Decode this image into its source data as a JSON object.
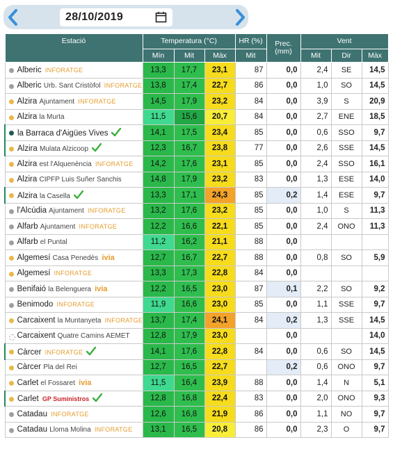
{
  "date_picker": {
    "date": "28/10/2019",
    "prev_icon": "chevron-left-icon",
    "next_icon": "chevron-right-icon",
    "calendar_icon": "calendar-icon"
  },
  "table": {
    "headers": {
      "station": "Estació",
      "temperature": "Temperatura (°C)",
      "humidity": "HR (%)",
      "precipitation_line1": "Prec.",
      "precipitation_line2": "(mm)",
      "wind": "Vent",
      "temp_min": "Mín",
      "temp_mit": "Mit",
      "temp_max": "Màx",
      "hr_mit": "Mit",
      "wind_mit": "Mit",
      "wind_dir": "Dir",
      "wind_max": "Màx"
    },
    "rows": [
      {
        "city": "Alberic",
        "loc": "",
        "src": "INFORATGE",
        "check": false,
        "dot": "#9e9e9e",
        "min": "13,3",
        "mit": "17,7",
        "max": "23,1",
        "minc": "#2ab84a",
        "mitc": "#2fbe4e",
        "maxc": "#f6dc1c",
        "hr": "87",
        "prec": "0,0",
        "pbg": "#ffffff",
        "wmit": "2,4",
        "wdir": "SE",
        "wmax": "14,5"
      },
      {
        "city": "Alberic",
        "loc": "Urb. Sant Cristòfol",
        "src": "INFORATGE",
        "check": false,
        "dot": "#9e9e9e",
        "min": "13,8",
        "mit": "17,4",
        "max": "22,7",
        "minc": "#2ab84a",
        "mitc": "#2fbe4e",
        "maxc": "#f6dc1c",
        "hr": "86",
        "prec": "0,0",
        "pbg": "#ffffff",
        "wmit": "1,0",
        "wdir": "SO",
        "wmax": "14,5"
      },
      {
        "city": "Alzira",
        "loc": "Ajuntament",
        "src": "INFORATGE",
        "check": false,
        "dot": "#e8b84a",
        "min": "14,5",
        "mit": "17,9",
        "max": "23,2",
        "minc": "#2ab84a",
        "mitc": "#2fbe4e",
        "maxc": "#f6dc1c",
        "hr": "84",
        "prec": "0,0",
        "pbg": "#ffffff",
        "wmit": "3,9",
        "wdir": "S",
        "wmax": "20,9"
      },
      {
        "city": "Alzira",
        "loc": "la Murta",
        "src": "",
        "check": false,
        "dot": "#e8b84a",
        "min": "11,5",
        "mit": "15,6",
        "max": "20,7",
        "minc": "#3fd98f",
        "mitc": "#22a845",
        "maxc": "#f8ee38",
        "hr": "84",
        "prec": "0,0",
        "pbg": "#ffffff",
        "wmit": "2,7",
        "wdir": "ENE",
        "wmax": "18,5"
      },
      {
        "city": "la Barraca d'Aigües Vives",
        "loc": "",
        "src": "",
        "check": true,
        "dot": "#1e5a52",
        "hl": true,
        "min": "14,1",
        "mit": "17,5",
        "max": "23,4",
        "minc": "#2ab84a",
        "mitc": "#2fbe4e",
        "maxc": "#f6dc1c",
        "hr": "85",
        "prec": "0,0",
        "pbg": "#ffffff",
        "wmit": "0,6",
        "wdir": "SSO",
        "wmax": "9,7"
      },
      {
        "city": "Alzira",
        "loc": "Mulata Alzicoop",
        "src": "",
        "check": true,
        "dot": "#e8b84a",
        "hl": true,
        "min": "12,3",
        "mit": "16,7",
        "max": "23,8",
        "minc": "#2ab84a",
        "mitc": "#2fbe4e",
        "maxc": "#f6dc1c",
        "hr": "77",
        "prec": "0,0",
        "pbg": "#ffffff",
        "wmit": "2,6",
        "wdir": "SSE",
        "wmax": "14,5"
      },
      {
        "city": "Alzira",
        "loc": "est l'Alquenència",
        "src": "INFORATGE",
        "check": false,
        "dot": "#e8b84a",
        "min": "14,2",
        "mit": "17,6",
        "max": "23,1",
        "minc": "#2ab84a",
        "mitc": "#2fbe4e",
        "maxc": "#f6dc1c",
        "hr": "85",
        "prec": "0,0",
        "pbg": "#ffffff",
        "wmit": "2,4",
        "wdir": "SSO",
        "wmax": "16,1"
      },
      {
        "city": "Alzira",
        "loc": "CIPFP Luis Suñer Sanchis",
        "src": "",
        "check": false,
        "dot": "#e8b84a",
        "min": "14,8",
        "mit": "17,9",
        "max": "23,2",
        "minc": "#2ab84a",
        "mitc": "#2fbe4e",
        "maxc": "#f6dc1c",
        "hr": "83",
        "prec": "0,0",
        "pbg": "#ffffff",
        "wmit": "1,3",
        "wdir": "ESE",
        "wmax": "14,0"
      },
      {
        "city": "Alzira",
        "loc": "la Casella",
        "src": "",
        "check": true,
        "dot": "#e8b84a",
        "hl": true,
        "min": "13,3",
        "mit": "17,1",
        "max": "24,3",
        "minc": "#2ab84a",
        "mitc": "#2fbe4e",
        "maxc": "#f3a22a",
        "hr": "85",
        "prec": "0,2",
        "pbg": "#e3ecf7",
        "wmit": "1,4",
        "wdir": "ESE",
        "wmax": "9,7"
      },
      {
        "city": "l'Alcúdia",
        "loc": "Ajuntament",
        "src": "INFORATGE",
        "check": false,
        "dot": "#9e9e9e",
        "min": "13,2",
        "mit": "17,6",
        "max": "23,2",
        "minc": "#2ab84a",
        "mitc": "#2fbe4e",
        "maxc": "#f6dc1c",
        "hr": "85",
        "prec": "0,0",
        "pbg": "#ffffff",
        "wmit": "1,0",
        "wdir": "S",
        "wmax": "11,3"
      },
      {
        "city": "Alfarb",
        "loc": "Ajuntament",
        "src": "INFORATGE",
        "check": false,
        "dot": "#9e9e9e",
        "min": "12,2",
        "mit": "16,6",
        "max": "22,1",
        "minc": "#2ab84a",
        "mitc": "#2fbe4e",
        "maxc": "#f6dc1c",
        "hr": "85",
        "prec": "0,0",
        "pbg": "#ffffff",
        "wmit": "2,4",
        "wdir": "ONO",
        "wmax": "11,3"
      },
      {
        "city": "Alfarb",
        "loc": "el Puntal",
        "src": "",
        "check": false,
        "dot": "#9e9e9e",
        "min": "11,2",
        "mit": "16,2",
        "max": "21,1",
        "minc": "#3fd98f",
        "mitc": "#2fbe4e",
        "maxc": "#f6dc1c",
        "hr": "88",
        "prec": "0,0",
        "pbg": "#ffffff",
        "wmit": "",
        "wdir": "",
        "wmax": ""
      },
      {
        "city": "Algemesí",
        "loc": "Casa Penedès",
        "src": "ivia",
        "check": false,
        "dot": "#e8b84a",
        "min": "12,7",
        "mit": "16,7",
        "max": "22,7",
        "minc": "#2ab84a",
        "mitc": "#2fbe4e",
        "maxc": "#f6dc1c",
        "hr": "88",
        "prec": "0,0",
        "pbg": "#ffffff",
        "wmit": "0,8",
        "wdir": "SO",
        "wmax": "5,9"
      },
      {
        "city": "Algemesí",
        "loc": "",
        "src": "INFORATGE",
        "check": false,
        "dot": "#e8b84a",
        "min": "13,3",
        "mit": "17,3",
        "max": "22,8",
        "minc": "#2ab84a",
        "mitc": "#2fbe4e",
        "maxc": "#f6dc1c",
        "hr": "84",
        "prec": "0,0",
        "pbg": "#ffffff",
        "wmit": "",
        "wdir": "",
        "wmax": ""
      },
      {
        "city": "Benifaió",
        "loc": "la Belenguera",
        "src": "ivia",
        "check": false,
        "dot": "#9e9e9e",
        "min": "12,2",
        "mit": "16,5",
        "max": "23,0",
        "minc": "#2ab84a",
        "mitc": "#2fbe4e",
        "maxc": "#f6dc1c",
        "hr": "87",
        "prec": "0,1",
        "pbg": "#e3ecf7",
        "wmit": "2,2",
        "wdir": "SO",
        "wmax": "9,2"
      },
      {
        "city": "Benimodo",
        "loc": "",
        "src": "INFORATGE",
        "check": false,
        "dot": "#9e9e9e",
        "min": "11,9",
        "mit": "16,6",
        "max": "23,0",
        "minc": "#3fd98f",
        "mitc": "#2fbe4e",
        "maxc": "#f6dc1c",
        "hr": "85",
        "prec": "0,0",
        "pbg": "#ffffff",
        "wmit": "1,1",
        "wdir": "SSE",
        "wmax": "9,7"
      },
      {
        "city": "Carcaixent",
        "loc": "la Muntanyeta",
        "src": "INFORATGE",
        "check": false,
        "dot": "#e8b84a",
        "min": "13,7",
        "mit": "17,4",
        "max": "24,1",
        "minc": "#2ab84a",
        "mitc": "#2fbe4e",
        "maxc": "#f3a22a",
        "hr": "84",
        "prec": "0,2",
        "pbg": "#e3ecf7",
        "wmit": "1,3",
        "wdir": "SSE",
        "wmax": "14,5"
      },
      {
        "city": "Carcaixent",
        "loc": "Quatre Camins AEMET",
        "src": "",
        "check": false,
        "dot": "#ffffff",
        "min": "12,8",
        "mit": "17,9",
        "max": "23,0",
        "minc": "#2ab84a",
        "mitc": "#2fbe4e",
        "maxc": "#f6dc1c",
        "hr": "",
        "prec": "0,0",
        "pbg": "#ffffff",
        "wmit": "",
        "wdir": "",
        "wmax": "14,0"
      },
      {
        "city": "Càrcer",
        "loc": "",
        "src": "INFORATGE",
        "check": true,
        "dot": "#e8b84a",
        "hl": true,
        "min": "14,1",
        "mit": "17,6",
        "max": "22,8",
        "minc": "#2ab84a",
        "mitc": "#2fbe4e",
        "maxc": "#f6dc1c",
        "hr": "84",
        "prec": "0,0",
        "pbg": "#ffffff",
        "wmit": "0,6",
        "wdir": "SO",
        "wmax": "14,5"
      },
      {
        "city": "Càrcer",
        "loc": "Pla del Rei",
        "src": "",
        "check": false,
        "dot": "#e8b84a",
        "min": "12,7",
        "mit": "16,5",
        "max": "22,7",
        "minc": "#2ab84a",
        "mitc": "#2fbe4e",
        "maxc": "#f6dc1c",
        "hr": "",
        "prec": "0,2",
        "pbg": "#e3ecf7",
        "wmit": "0,6",
        "wdir": "ONO",
        "wmax": "9,7"
      },
      {
        "city": "Carlet",
        "loc": "el Fossaret",
        "src": "ivia",
        "check": false,
        "dot": "#e8b84a",
        "min": "11,5",
        "mit": "16,4",
        "max": "23,9",
        "minc": "#3fd98f",
        "mitc": "#2fbe4e",
        "maxc": "#f6dc1c",
        "hr": "88",
        "prec": "0,0",
        "pbg": "#ffffff",
        "wmit": "1,4",
        "wdir": "N",
        "wmax": "5,1"
      },
      {
        "city": "Carlet",
        "loc": "",
        "src": "GP Suministros",
        "check": true,
        "dot": "#e8b84a",
        "hl": true,
        "min": "12,8",
        "mit": "16,8",
        "max": "22,4",
        "minc": "#2ab84a",
        "mitc": "#2fbe4e",
        "maxc": "#f6dc1c",
        "hr": "83",
        "prec": "0,0",
        "pbg": "#ffffff",
        "wmit": "2,0",
        "wdir": "ONO",
        "wmax": "9,3"
      },
      {
        "city": "Catadau",
        "loc": "",
        "src": "INFORATGE",
        "check": false,
        "dot": "#9e9e9e",
        "min": "12,6",
        "mit": "16,8",
        "max": "21,9",
        "minc": "#2ab84a",
        "mitc": "#2fbe4e",
        "maxc": "#f6dc1c",
        "hr": "86",
        "prec": "0,0",
        "pbg": "#ffffff",
        "wmit": "1,1",
        "wdir": "NO",
        "wmax": "9,7"
      },
      {
        "city": "Catadau",
        "loc": "Lloma Molina",
        "src": "INFORATGE",
        "check": false,
        "dot": "#9e9e9e",
        "min": "13,1",
        "mit": "16,5",
        "max": "20,8",
        "minc": "#2ab84a",
        "mitc": "#2fbe4e",
        "maxc": "#f8ee38",
        "hr": "86",
        "prec": "0,0",
        "pbg": "#ffffff",
        "wmit": "2,3",
        "wdir": "O",
        "wmax": "9,7"
      }
    ]
  },
  "colors": {
    "header_bg": "#3e7371",
    "source_inforatge": "#e59b2d",
    "source_ivia": "#e59b2d",
    "source_gp": "#c8242b",
    "check": "#3cae3c",
    "date_arrow": "#3a8fd8"
  }
}
